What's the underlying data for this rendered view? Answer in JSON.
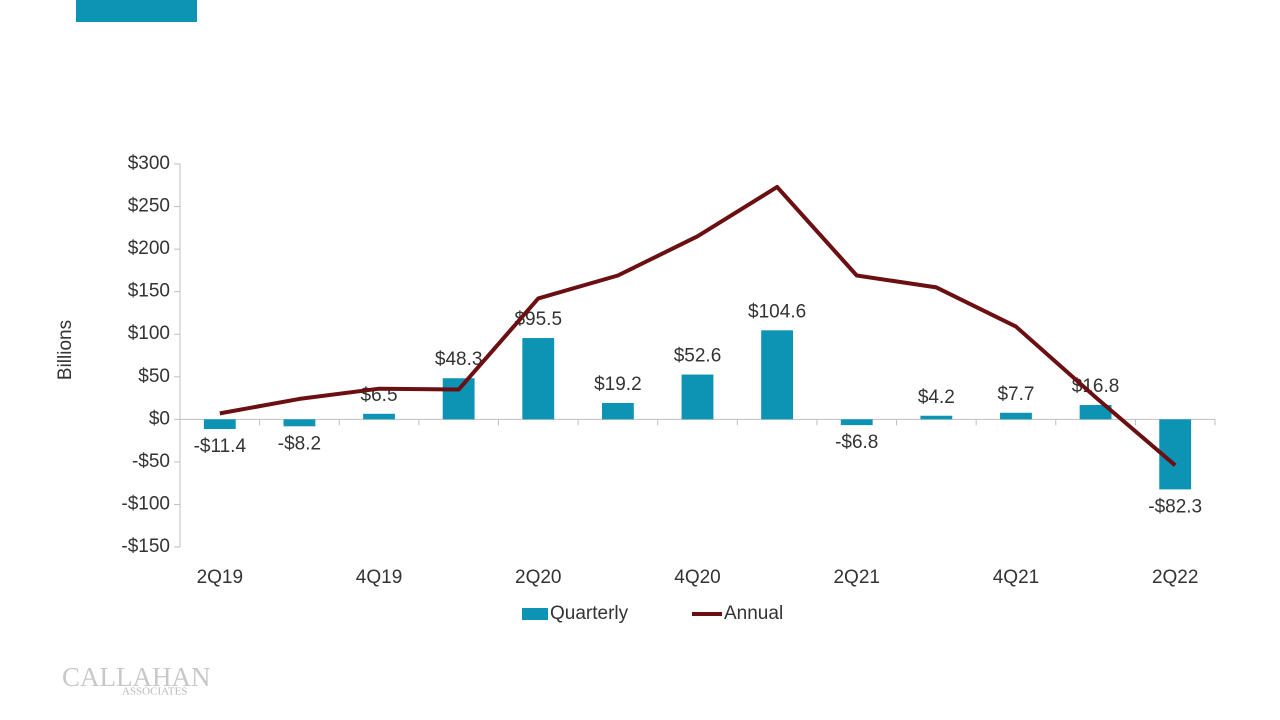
{
  "chart_data": {
    "type": "bar-line",
    "y_label": "Billions",
    "categories": [
      "2Q19",
      null,
      "4Q19",
      null,
      "2Q20",
      null,
      "4Q20",
      null,
      "2Q21",
      null,
      "4Q21",
      null,
      "2Q22"
    ],
    "series": [
      {
        "name": "Quarterly",
        "type": "bar",
        "color": "#0d93b4",
        "values": [
          -11.4,
          -8.2,
          6.5,
          48.3,
          95.5,
          19.2,
          52.6,
          104.6,
          -6.8,
          4.2,
          7.7,
          16.8,
          -82.3
        ],
        "value_labels": [
          "-$11.4",
          "-$8.2",
          "$6.5",
          "$48.3",
          "$95.5",
          "$19.2",
          "$52.6",
          "$104.6",
          "-$6.8",
          "$4.2",
          "$7.7",
          "$16.8",
          "-$82.3"
        ]
      },
      {
        "name": "Annual",
        "type": "line",
        "color": "#6b0f12",
        "values": [
          7,
          24,
          36,
          35,
          142,
          169,
          215,
          273,
          169,
          155,
          109,
          26,
          -54
        ]
      }
    ],
    "ylim": [
      -150,
      300
    ],
    "yticks": [
      {
        "value": -150,
        "label": "-$150"
      },
      {
        "value": -100,
        "label": "-$100"
      },
      {
        "value": -50,
        "label": "-$50"
      },
      {
        "value": 0,
        "label": "$0"
      },
      {
        "value": 50,
        "label": "$50"
      },
      {
        "value": 100,
        "label": "$100"
      },
      {
        "value": 150,
        "label": "$150"
      },
      {
        "value": 200,
        "label": "$200"
      },
      {
        "value": 250,
        "label": "$250"
      },
      {
        "value": 300,
        "label": "$300"
      }
    ],
    "grid": false,
    "legend": "bottom"
  },
  "logo": {
    "name": "CALLAHAN",
    "sub": "ASSOCIATES"
  }
}
